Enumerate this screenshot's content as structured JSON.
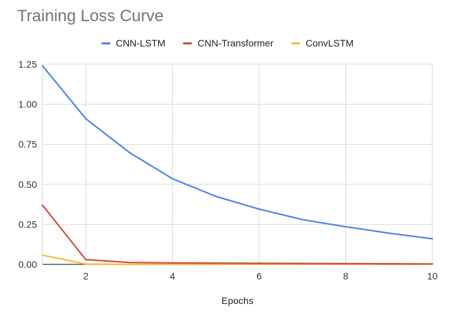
{
  "chart_data": {
    "type": "line",
    "title": "Training Loss Curve",
    "xlabel": "Epochs",
    "ylabel": "",
    "xlim": [
      1,
      10
    ],
    "ylim": [
      0,
      1.25
    ],
    "x": [
      1,
      2,
      3,
      4,
      5,
      6,
      7,
      8,
      9,
      10
    ],
    "xticks": [
      2,
      4,
      6,
      8,
      10
    ],
    "xtick_labels": [
      "2",
      "4",
      "6",
      "8",
      "10"
    ],
    "yticks": [
      0,
      0.25,
      0.5,
      0.75,
      1.0,
      1.25
    ],
    "ytick_labels": [
      "0.00",
      "0.25",
      "0.50",
      "0.75",
      "1.00",
      "1.25"
    ],
    "grid": true,
    "legend_position": "top-center",
    "series": [
      {
        "name": "CNN-LSTM",
        "color": "#4f81e8",
        "values": [
          1.24,
          0.91,
          0.7,
          0.535,
          0.425,
          0.345,
          0.28,
          0.235,
          0.195,
          0.16
        ]
      },
      {
        "name": "CNN-Transformer",
        "color": "#d14b3c",
        "values": [
          0.37,
          0.03,
          0.012,
          0.009,
          0.008,
          0.007,
          0.006,
          0.005,
          0.004,
          0.003
        ]
      },
      {
        "name": "ConvLSTM",
        "color": "#f2be42",
        "values": [
          0.058,
          0.002,
          0.001,
          0.001,
          0.001,
          0.001,
          0.001,
          0.001,
          0.001,
          0.001
        ]
      }
    ]
  }
}
